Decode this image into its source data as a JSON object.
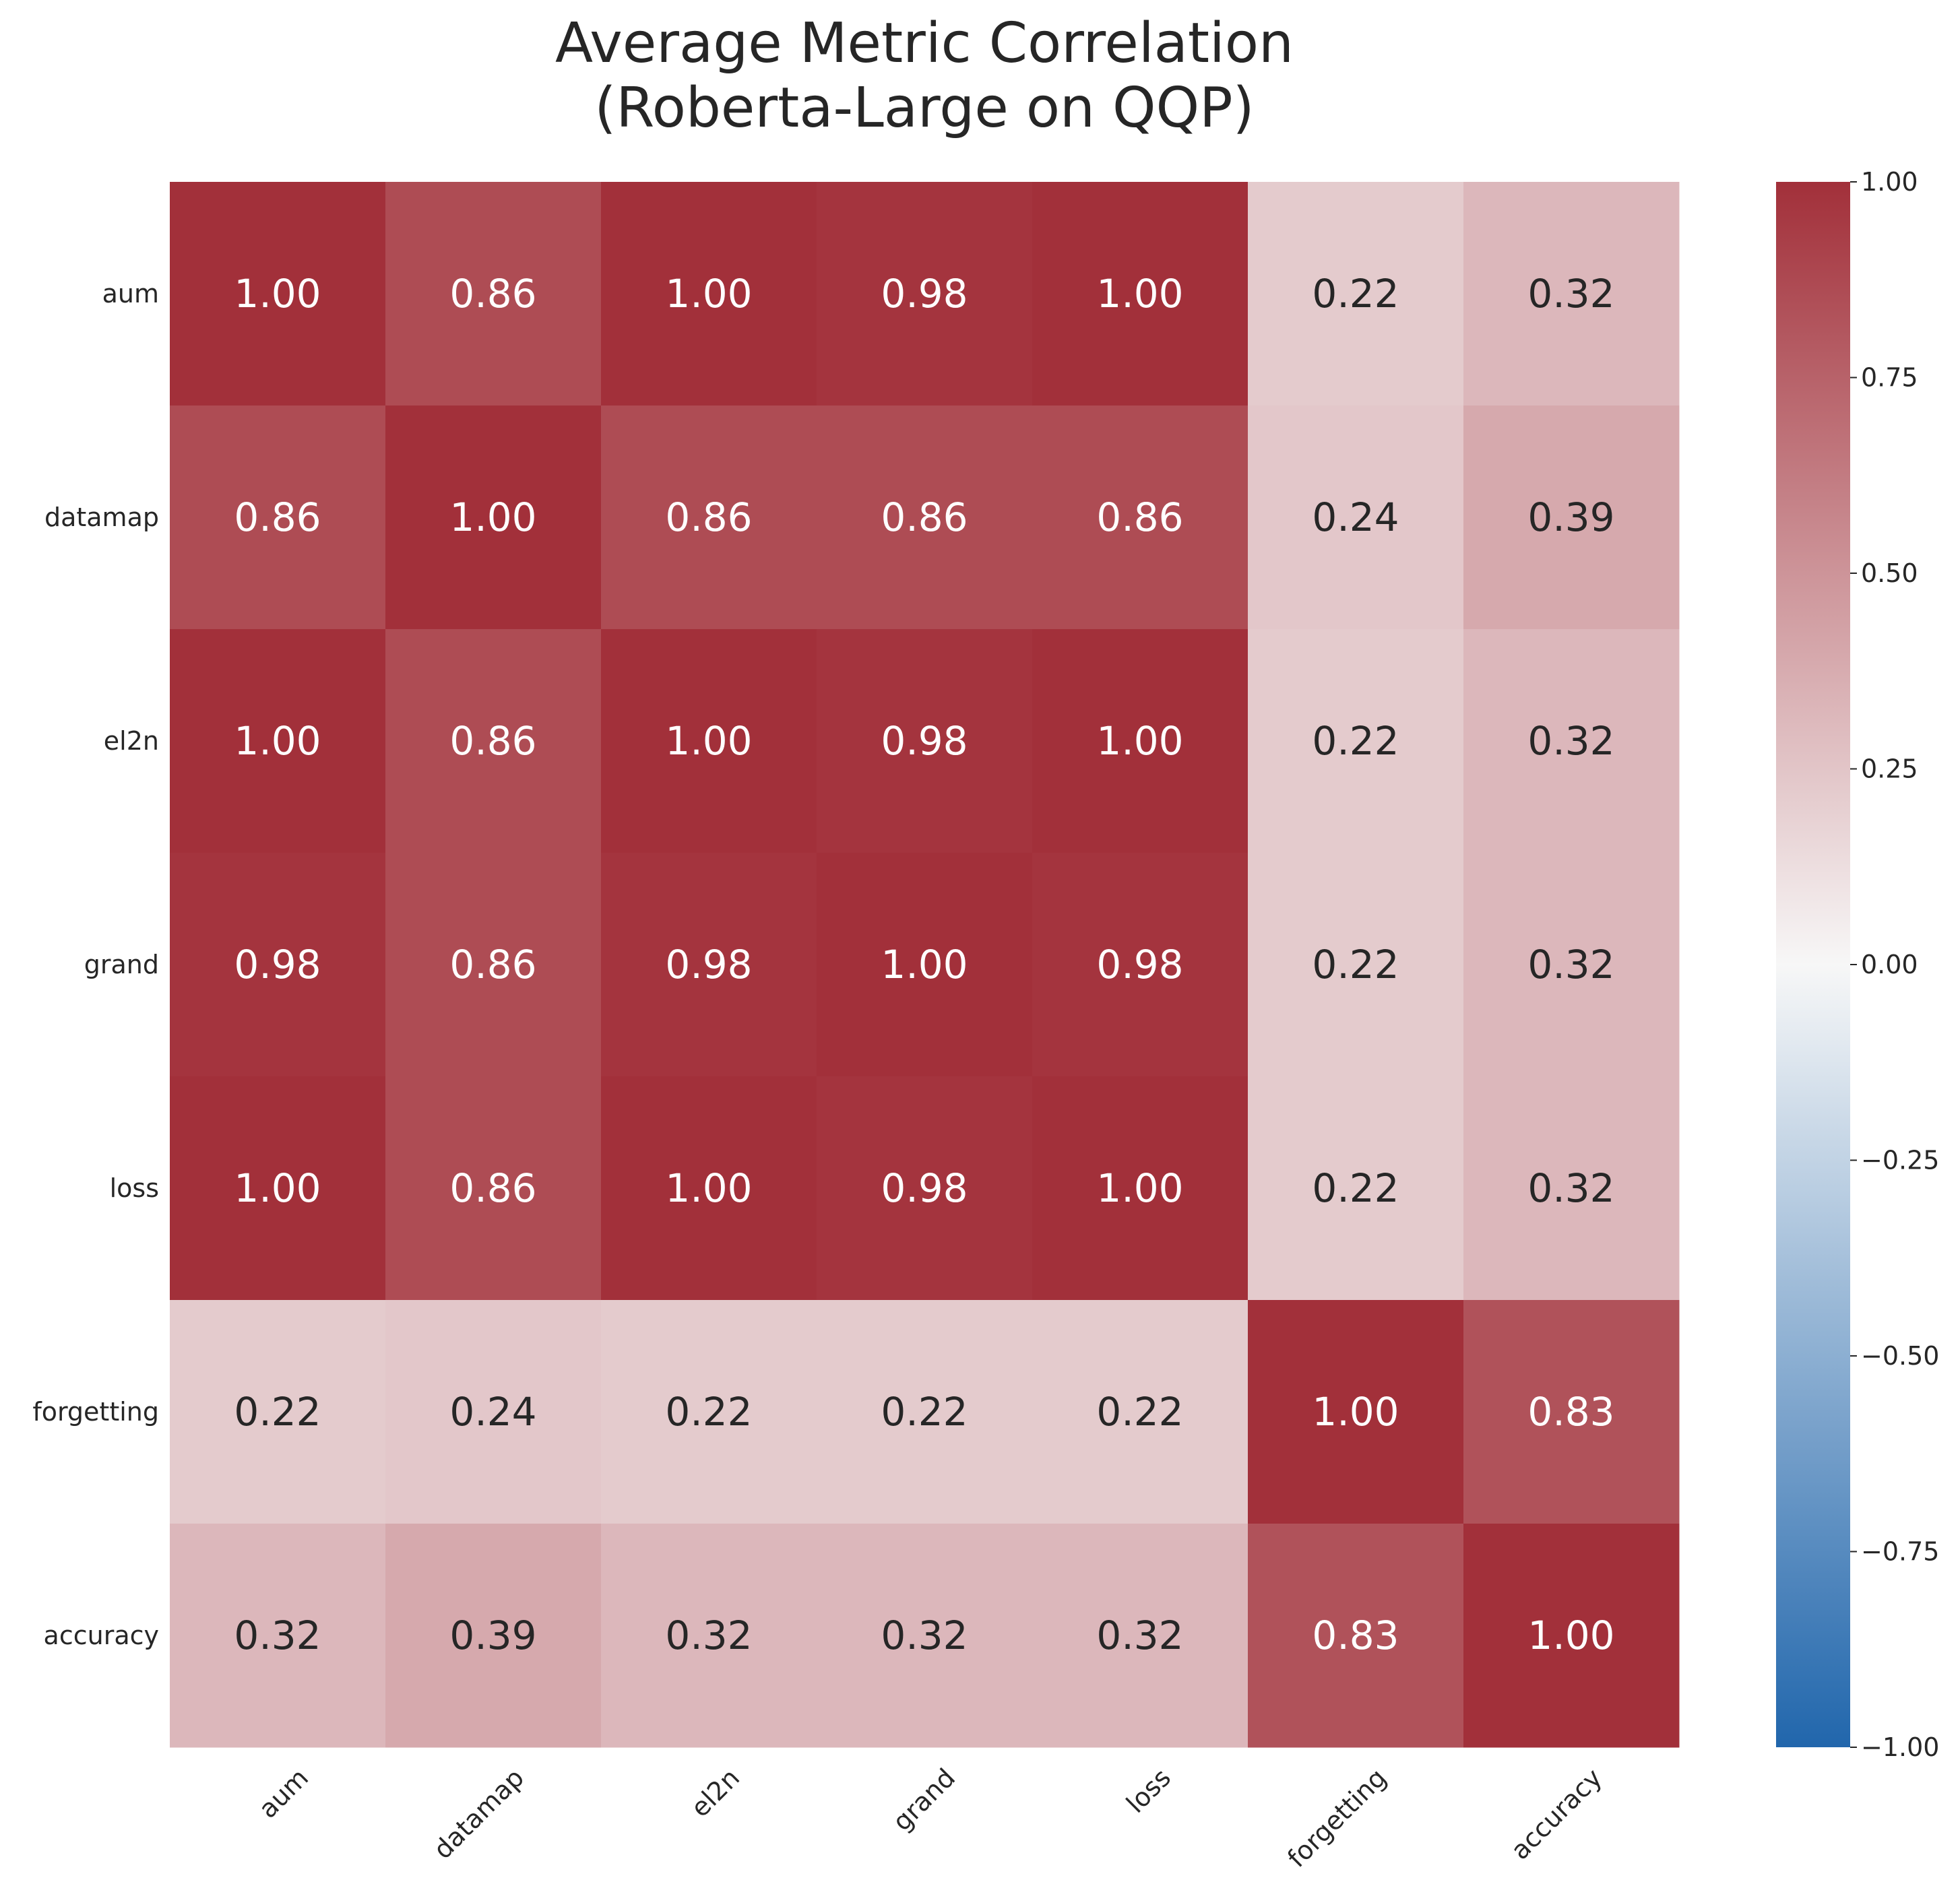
{
  "chart_data": {
    "type": "heatmap",
    "title": [
      "Average Metric Correlation",
      "(Roberta-Large on QQP)"
    ],
    "row_labels": [
      "aum",
      "datamap",
      "el2n",
      "grand",
      "loss",
      "forgetting",
      "accuracy"
    ],
    "col_labels": [
      "aum",
      "datamap",
      "el2n",
      "grand",
      "loss",
      "forgetting",
      "accuracy"
    ],
    "values": [
      [
        1.0,
        0.86,
        1.0,
        0.98,
        1.0,
        0.22,
        0.32
      ],
      [
        0.86,
        1.0,
        0.86,
        0.86,
        0.86,
        0.24,
        0.39
      ],
      [
        1.0,
        0.86,
        1.0,
        0.98,
        1.0,
        0.22,
        0.32
      ],
      [
        0.98,
        0.86,
        0.98,
        1.0,
        0.98,
        0.22,
        0.32
      ],
      [
        1.0,
        0.86,
        1.0,
        0.98,
        1.0,
        0.22,
        0.32
      ],
      [
        0.22,
        0.24,
        0.22,
        0.22,
        0.22,
        1.0,
        0.83
      ],
      [
        0.32,
        0.39,
        0.32,
        0.32,
        0.32,
        0.83,
        1.0
      ]
    ],
    "annotation_format": "0.00",
    "colormap": "diverging blue-white-red (vlag)",
    "colors": {
      "low": "#2166ac",
      "mid": "#f7f7f7",
      "high": "#a2303a"
    },
    "vmin": -1.0,
    "vmax": 1.0,
    "colorbar": {
      "ticks": [
        1.0,
        0.75,
        0.5,
        0.25,
        0.0,
        -0.25,
        -0.5,
        -0.75,
        -1.0
      ],
      "tick_labels": [
        "1.00",
        "0.75",
        "0.50",
        "0.25",
        "0.00",
        "−0.25",
        "−0.50",
        "−0.75",
        "−1.00"
      ]
    },
    "grid": false,
    "x_tick_rotation_deg": 45
  }
}
